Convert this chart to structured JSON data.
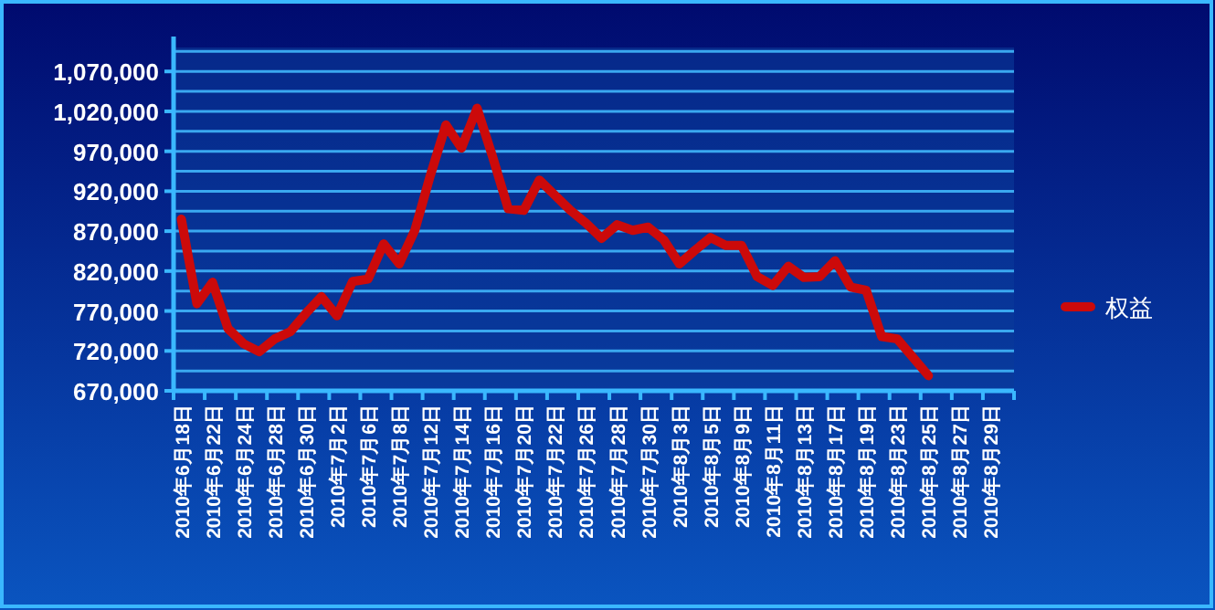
{
  "chart_data": {
    "type": "line",
    "categories": [
      "2010年6月18日",
      null,
      "2010年6月22日",
      null,
      "2010年6月24日",
      null,
      "2010年6月28日",
      null,
      "2010年6月30日",
      null,
      "2010年7月2日",
      null,
      "2010年7月6日",
      null,
      "2010年7月8日",
      null,
      "2010年7月12日",
      null,
      "2010年7月14日",
      null,
      "2010年7月16日",
      null,
      "2010年7月20日",
      null,
      "2010年7月22日",
      null,
      "2010年7月26日",
      null,
      "2010年7月28日",
      null,
      "2010年7月30日",
      null,
      "2010年8月3日",
      null,
      "2010年8月5日",
      null,
      "2010年8月9日",
      null,
      "2010年8月11日",
      null,
      "2010年8月13日",
      null,
      "2010年8月17日",
      null,
      "2010年8月19日",
      null,
      "2010年8月23日",
      null,
      "2010年8月25日",
      null,
      "2010年8月27日",
      null,
      "2010年8月29日",
      null
    ],
    "series": [
      {
        "name": "权益",
        "color": "#cc0a0a",
        "values": [
          885000,
          779000,
          806000,
          748000,
          729000,
          719000,
          735000,
          744000,
          767000,
          788000,
          764000,
          807000,
          810000,
          854000,
          829000,
          871000,
          940000,
          1003000,
          974000,
          1024000,
          963000,
          898000,
          896000,
          934000,
          915000,
          896000,
          880000,
          861000,
          878000,
          871000,
          875000,
          859000,
          829000,
          846000,
          862000,
          852000,
          852000,
          813000,
          802000,
          826000,
          812000,
          813000,
          833000,
          800000,
          796000,
          738000,
          735000,
          712000,
          689000,
          null,
          null,
          null,
          null,
          null
        ]
      }
    ],
    "ylim": [
      670000,
      1100000
    ],
    "yticks": [
      {
        "value": 670000,
        "label": "670,000"
      },
      {
        "value": 695000,
        "label": null
      },
      {
        "value": 720000,
        "label": "720,000"
      },
      {
        "value": 745000,
        "label": null
      },
      {
        "value": 770000,
        "label": "770,000"
      },
      {
        "value": 795000,
        "label": null
      },
      {
        "value": 820000,
        "label": "820,000"
      },
      {
        "value": 845000,
        "label": null
      },
      {
        "value": 870000,
        "label": "870,000"
      },
      {
        "value": 895000,
        "label": null
      },
      {
        "value": 920000,
        "label": "920,000"
      },
      {
        "value": 945000,
        "label": null
      },
      {
        "value": 970000,
        "label": "970,000"
      },
      {
        "value": 995000,
        "label": null
      },
      {
        "value": 1020000,
        "label": "1,020,000"
      },
      {
        "value": 1045000,
        "label": null
      },
      {
        "value": 1070000,
        "label": "1,070,000"
      },
      {
        "value": 1095000,
        "label": null
      }
    ],
    "grid": "y",
    "legend": "right",
    "marker": "none",
    "line_style": "solid"
  }
}
